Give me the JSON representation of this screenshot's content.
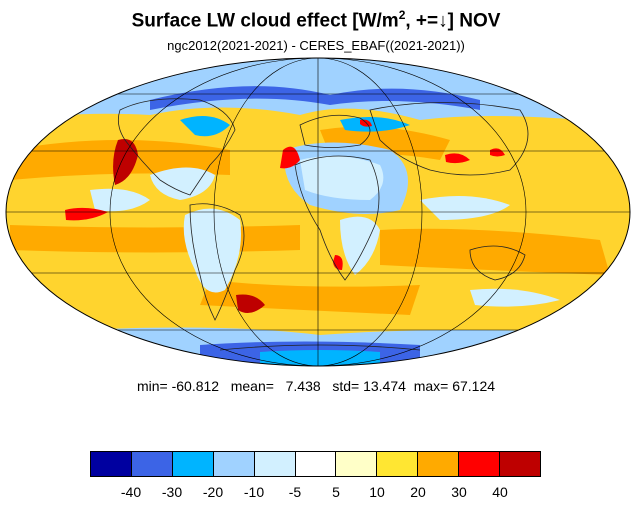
{
  "title": {
    "main_prefix": "Surface LW cloud effect [W/m",
    "superscript": "2",
    "main_suffix": ", +=↓]  NOV"
  },
  "subtitle": "ngc2012(2021-2021) - CERES_EBAF((2021-2021))",
  "stats": {
    "min_label": "min=",
    "min": "-60.812",
    "mean_label": "mean=",
    "mean": "7.438",
    "std_label": "std=",
    "std": "13.474",
    "max_label": "max=",
    "max": "67.124"
  },
  "colorbar": {
    "colors": [
      "#0000a0",
      "#3c64e6",
      "#00b4ff",
      "#a0d2ff",
      "#d2f0ff",
      "#ffffff",
      "#ffffc8",
      "#ffe632",
      "#ffaa00",
      "#ff0000",
      "#be0000"
    ],
    "labels": [
      "-40",
      "-30",
      "-20",
      "-10",
      "-5",
      "5",
      "10",
      "20",
      "30",
      "40"
    ]
  },
  "map": {
    "projection": "mollweide",
    "background_color": "#ffd42e"
  }
}
